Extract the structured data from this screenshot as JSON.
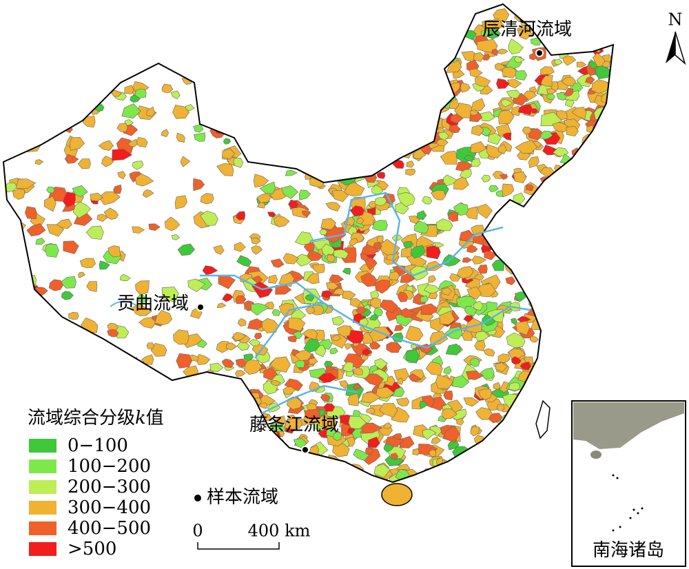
{
  "map": {
    "north": "N",
    "basins": [
      {
        "label": "辰清河流域"
      },
      {
        "label": "贡曲流域"
      },
      {
        "label": "藤条江流域"
      }
    ],
    "legend": {
      "title_prefix": "流域综合分级",
      "title_var": "k",
      "title_suffix": "值",
      "classes": [
        {
          "label": "0−100",
          "color": "#3fc83a"
        },
        {
          "label": "100−200",
          "color": "#7ee84b"
        },
        {
          "label": "200−300",
          "color": "#bdee55"
        },
        {
          "label": "300−400",
          "color": "#efb233"
        },
        {
          "label": "400−500",
          "color": "#f0602a"
        },
        {
          "label": ">500",
          "color": "#f31d1d"
        }
      ]
    },
    "sample_label": "样本流域",
    "scale_bar": {
      "start": "0",
      "end": "400 km"
    },
    "inset_label": "南海诸岛"
  }
}
